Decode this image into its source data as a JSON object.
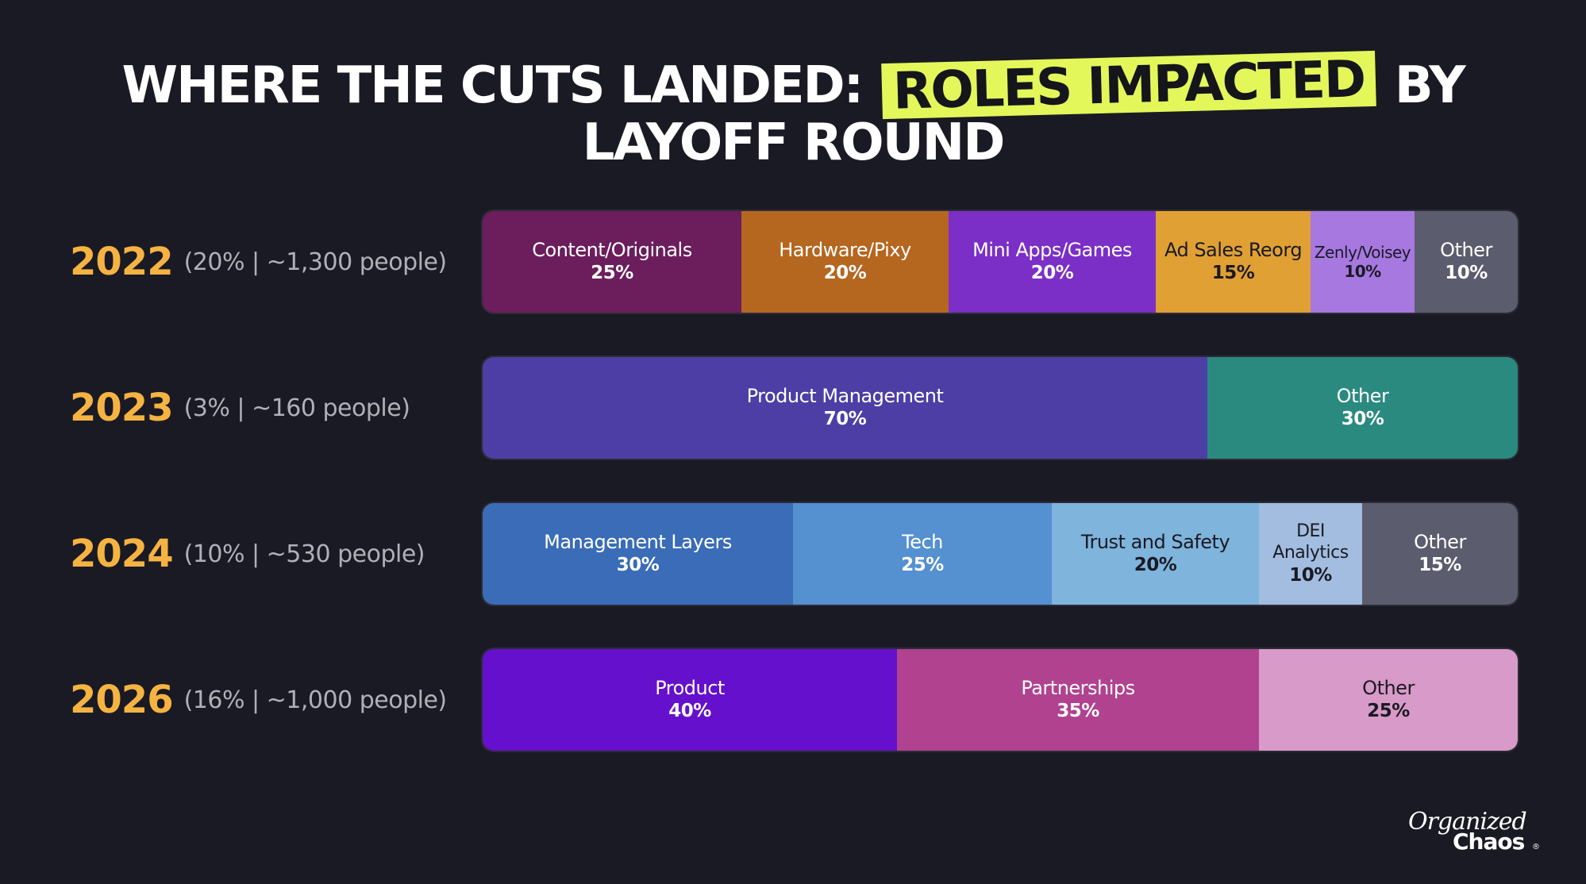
{
  "title": {
    "part1": "WHERE THE CUTS LANDED:",
    "highlight": "ROLES IMPACTED",
    "part2": "BY LAYOFF ROUND"
  },
  "logo": {
    "line1": "Organized",
    "line2": "Chaos",
    "mark": "®"
  },
  "chart_data": {
    "type": "bar",
    "orientation": "horizontal",
    "stacked": true,
    "normalized": true,
    "title": "WHERE THE CUTS LANDED: ROLES IMPACTED BY LAYOFF ROUND",
    "rows": [
      {
        "year": "2022",
        "detail": "(20% | ~1,300 people)",
        "segments": [
          {
            "label": "Content/Originals",
            "value": 25,
            "value_label": "25%",
            "color": "#6b1d5c",
            "text_color": "#ffffff"
          },
          {
            "label": "Hardware/Pixy",
            "value": 20,
            "value_label": "20%",
            "color": "#b5661f",
            "text_color": "#ffffff"
          },
          {
            "label": "Mini Apps/Games",
            "value": 20,
            "value_label": "20%",
            "color": "#7b2fc6",
            "text_color": "#ffffff"
          },
          {
            "label": "Ad Sales Reorg",
            "value": 15,
            "value_label": "15%",
            "color": "#e1a033",
            "text_color": "#1a1a24"
          },
          {
            "label": "Zenly/Voisey",
            "value": 10,
            "value_label": "10%",
            "color": "#a678e0",
            "text_color": "#1a1a24",
            "small": true
          },
          {
            "label": "Other",
            "value": 10,
            "value_label": "10%",
            "color": "#5b5c6d",
            "text_color": "#ffffff"
          }
        ]
      },
      {
        "year": "2023",
        "detail": "(3% | ~160 people)",
        "segments": [
          {
            "label": "Product Management",
            "value": 70,
            "value_label": "70%",
            "color": "#4d3ea6",
            "text_color": "#ffffff"
          },
          {
            "label": "Other",
            "value": 30,
            "value_label": "30%",
            "color": "#2b8a7f",
            "text_color": "#ffffff"
          }
        ]
      },
      {
        "year": "2024",
        "detail": "(10% | ~530 people)",
        "segments": [
          {
            "label": "Management Layers",
            "value": 30,
            "value_label": "30%",
            "color": "#3a6cb8",
            "text_color": "#ffffff"
          },
          {
            "label": "Tech",
            "value": 25,
            "value_label": "25%",
            "color": "#5590d1",
            "text_color": "#ffffff"
          },
          {
            "label": "Trust and Safety",
            "value": 20,
            "value_label": "20%",
            "color": "#7fb4dc",
            "text_color": "#1a1a24"
          },
          {
            "label": "DEI Analytics",
            "value": 10,
            "value_label": "10%",
            "color": "#a3bde0",
            "text_color": "#1a1a24",
            "wrap": true
          },
          {
            "label": "Other",
            "value": 15,
            "value_label": "15%",
            "color": "#5b5c6d",
            "text_color": "#ffffff"
          }
        ]
      },
      {
        "year": "2026",
        "detail": "(16% | ~1,000 people)",
        "segments": [
          {
            "label": "Product",
            "value": 40,
            "value_label": "40%",
            "color": "#6510cc",
            "text_color": "#ffffff"
          },
          {
            "label": "Partnerships",
            "value": 35,
            "value_label": "35%",
            "color": "#b04290",
            "text_color": "#ffffff"
          },
          {
            "label": "Other",
            "value": 25,
            "value_label": "25%",
            "color": "#d89ac8",
            "text_color": "#1a1a24"
          }
        ]
      }
    ],
    "xlim": [
      0,
      100
    ],
    "grid": false,
    "legend": "none"
  }
}
